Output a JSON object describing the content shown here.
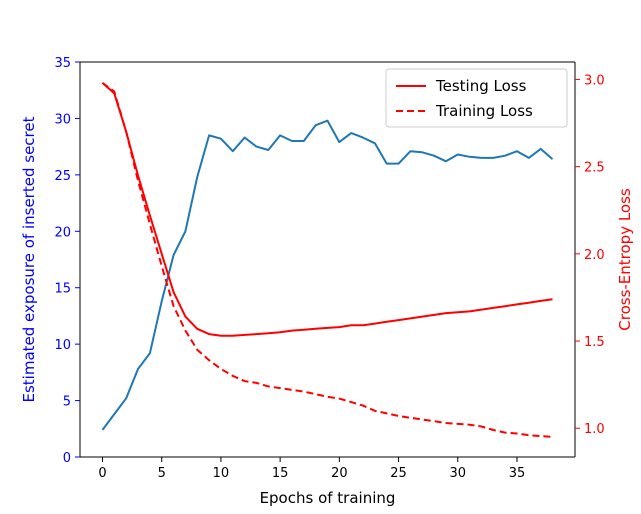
{
  "chart_data": {
    "type": "line",
    "x": [
      0,
      1,
      2,
      3,
      4,
      5,
      6,
      7,
      8,
      9,
      10,
      11,
      12,
      13,
      14,
      15,
      16,
      17,
      18,
      19,
      20,
      21,
      22,
      23,
      24,
      25,
      26,
      27,
      28,
      29,
      30,
      31,
      32,
      33,
      34,
      35,
      36,
      37,
      38
    ],
    "xlabel": "Epochs of training",
    "xlim": [
      -1.9,
      39.9
    ],
    "xticks": [
      0,
      5,
      10,
      15,
      20,
      25,
      30,
      35
    ],
    "left_axis": {
      "label": "Estimated exposure of inserted secret",
      "color": "#0000ff",
      "ylim": [
        0,
        35
      ],
      "ticks": [
        0,
        5,
        10,
        15,
        20,
        25,
        30,
        35
      ]
    },
    "right_axis": {
      "label": "Cross-Entropy Loss",
      "color": "#ff0000",
      "ylim": [
        0.835,
        3.1
      ],
      "ticks": [
        1.0,
        1.5,
        2.0,
        2.5,
        3.0
      ],
      "tick_labels": [
        "1.0",
        "1.5",
        "2.0",
        "2.5",
        "3.0"
      ]
    },
    "series": [
      {
        "axis": "left",
        "color": "#1f77b4",
        "style": "solid",
        "values": [
          2.4,
          3.8,
          5.2,
          7.8,
          9.2,
          13.8,
          17.9,
          20.0,
          24.8,
          28.5,
          28.2,
          27.1,
          28.3,
          27.5,
          27.2,
          28.5,
          28.0,
          28.0,
          29.4,
          29.8,
          27.9,
          28.7,
          28.3,
          27.8,
          26.0,
          26.0,
          27.1,
          27.0,
          26.7,
          26.2,
          26.8,
          26.6,
          26.5,
          26.5,
          26.7,
          27.1,
          26.5,
          27.3,
          26.4
        ]
      },
      {
        "name": "Testing Loss",
        "axis": "right",
        "color": "#ff0000",
        "style": "solid",
        "values": [
          2.98,
          2.92,
          2.7,
          2.45,
          2.22,
          2.0,
          1.78,
          1.64,
          1.57,
          1.54,
          1.53,
          1.53,
          1.535,
          1.54,
          1.545,
          1.55,
          1.56,
          1.565,
          1.57,
          1.575,
          1.58,
          1.59,
          1.59,
          1.6,
          1.61,
          1.62,
          1.63,
          1.64,
          1.65,
          1.66,
          1.665,
          1.67,
          1.68,
          1.69,
          1.7,
          1.71,
          1.72,
          1.73,
          1.74
        ]
      },
      {
        "name": "Training Loss",
        "axis": "right",
        "color": "#ff0000",
        "style": "dashed",
        "values": [
          2.98,
          2.93,
          2.7,
          2.42,
          2.17,
          1.93,
          1.7,
          1.56,
          1.45,
          1.39,
          1.34,
          1.3,
          1.27,
          1.26,
          1.24,
          1.23,
          1.22,
          1.21,
          1.195,
          1.18,
          1.17,
          1.15,
          1.13,
          1.1,
          1.085,
          1.07,
          1.06,
          1.05,
          1.04,
          1.03,
          1.025,
          1.02,
          1.01,
          0.99,
          0.975,
          0.97,
          0.96,
          0.955,
          0.95
        ]
      }
    ],
    "legend": {
      "placement": "top-right",
      "entries": [
        "Testing Loss",
        "Training Loss"
      ]
    }
  }
}
